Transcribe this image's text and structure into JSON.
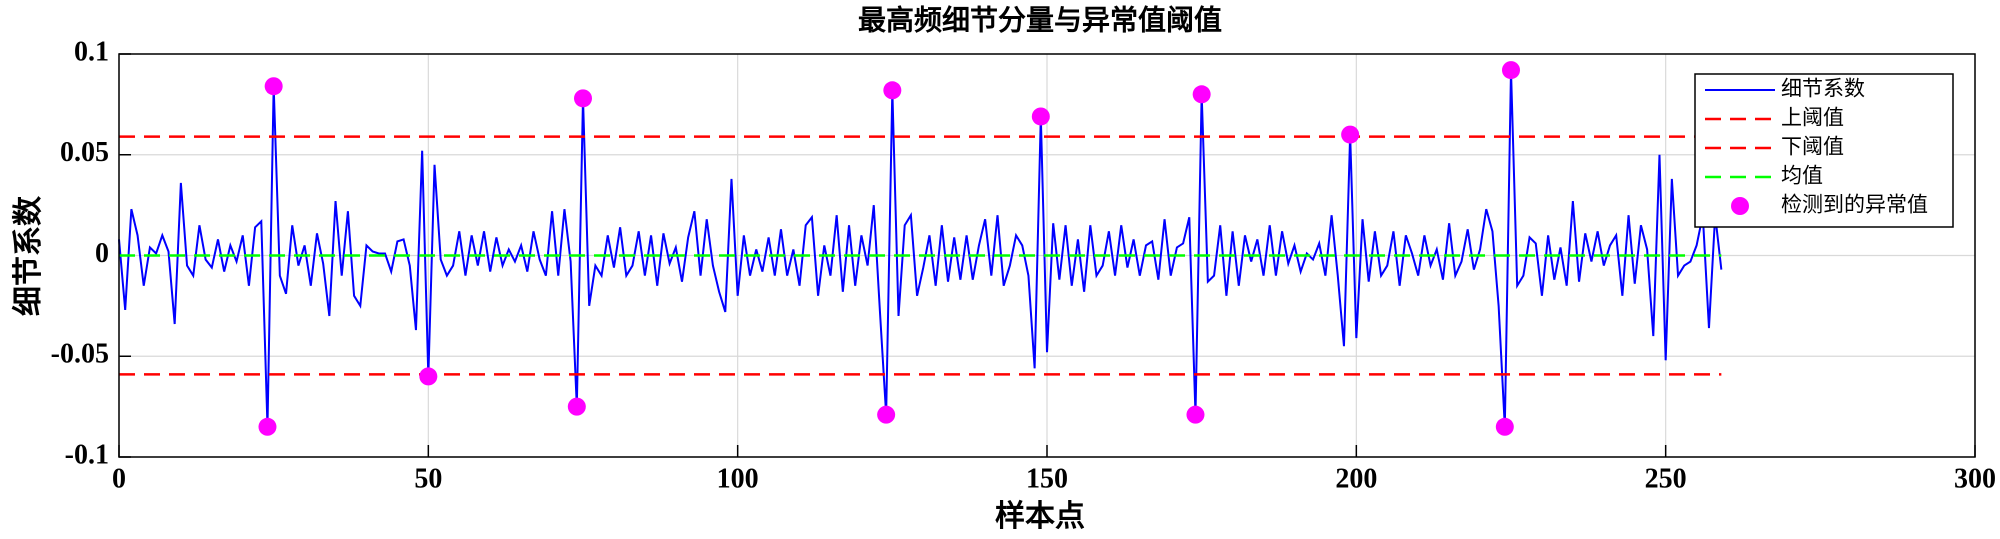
{
  "chart_data": {
    "type": "line",
    "title": "最高频细节分量与异常值阈值",
    "x_label": "样本点",
    "y_label": "细节系数",
    "xlim": [
      0,
      300
    ],
    "xticks": [
      0,
      50,
      100,
      150,
      200,
      250,
      300
    ],
    "ylim": [
      -0.1,
      0.1
    ],
    "yticks": [
      -0.1,
      -0.05,
      0,
      0.05,
      0.1
    ],
    "grid": true,
    "legend": "upper right",
    "series": [
      {
        "name": "细节系数",
        "color": "#0000ff",
        "style": "line",
        "x": [
          0,
          1,
          2,
          3,
          4,
          5,
          6,
          7,
          8,
          9,
          10,
          11,
          12,
          13,
          14,
          15,
          16,
          17,
          18,
          19,
          20,
          21,
          22,
          23,
          24,
          25,
          26,
          27,
          28,
          29,
          30,
          31,
          32,
          33,
          34,
          35,
          36,
          37,
          38,
          39,
          40,
          41,
          42,
          43,
          44,
          45,
          46,
          47,
          48,
          49,
          50,
          51,
          52,
          53,
          54,
          55,
          56,
          57,
          58,
          59,
          60,
          61,
          62,
          63,
          64,
          65,
          66,
          67,
          68,
          69,
          70,
          71,
          72,
          73,
          74,
          75,
          76,
          77,
          78,
          79,
          80,
          81,
          82,
          83,
          84,
          85,
          86,
          87,
          88,
          89,
          90,
          91,
          92,
          93,
          94,
          95,
          96,
          97,
          98,
          99,
          100,
          101,
          102,
          103,
          104,
          105,
          106,
          107,
          108,
          109,
          110,
          111,
          112,
          113,
          114,
          115,
          116,
          117,
          118,
          119,
          120,
          121,
          122,
          123,
          124,
          125,
          126,
          127,
          128,
          129,
          130,
          131,
          132,
          133,
          134,
          135,
          136,
          137,
          138,
          139,
          140,
          141,
          142,
          143,
          144,
          145,
          146,
          147,
          148,
          149,
          150,
          151,
          152,
          153,
          154,
          155,
          156,
          157,
          158,
          159,
          160,
          161,
          162,
          163,
          164,
          165,
          166,
          167,
          168,
          169,
          170,
          171,
          172,
          173,
          174,
          175,
          176,
          177,
          178,
          179,
          180,
          181,
          182,
          183,
          184,
          185,
          186,
          187,
          188,
          189,
          190,
          191,
          192,
          193,
          194,
          195,
          196,
          197,
          198,
          199,
          200,
          201,
          202,
          203,
          204,
          205,
          206,
          207,
          208,
          209,
          210,
          211,
          212,
          213,
          214,
          215,
          216,
          217,
          218,
          219,
          220,
          221,
          222,
          223,
          224,
          225,
          226,
          227,
          228,
          229,
          230,
          231,
          232,
          233,
          234,
          235,
          236,
          237,
          238,
          239,
          240,
          241,
          242,
          243,
          244,
          245,
          246,
          247,
          248,
          249,
          250,
          251,
          252,
          253,
          254,
          255,
          256,
          257,
          258,
          259
        ],
        "values": [
          0.008,
          -0.027,
          0.023,
          0.01,
          -0.015,
          0.004,
          0.001,
          0.01,
          0.002,
          -0.034,
          0.036,
          -0.005,
          -0.01,
          0.015,
          -0.002,
          -0.006,
          0.008,
          -0.008,
          0.005,
          -0.003,
          0.01,
          -0.015,
          0.014,
          0.017,
          -0.085,
          0.084,
          -0.01,
          -0.019,
          0.015,
          -0.005,
          0.005,
          -0.015,
          0.011,
          -0.004,
          -0.03,
          0.027,
          -0.01,
          0.022,
          -0.02,
          -0.025,
          0.005,
          0.002,
          0.001,
          0.001,
          -0.008,
          0.007,
          0.008,
          -0.005,
          -0.037,
          0.052,
          -0.06,
          0.045,
          -0.002,
          -0.01,
          -0.005,
          0.012,
          -0.01,
          0.01,
          -0.005,
          0.012,
          -0.008,
          0.009,
          -0.005,
          0.003,
          -0.003,
          0.005,
          -0.008,
          0.012,
          -0.002,
          -0.01,
          0.022,
          -0.01,
          0.023,
          -0.003,
          -0.075,
          0.078,
          -0.025,
          -0.005,
          -0.01,
          0.01,
          -0.006,
          0.014,
          -0.01,
          -0.005,
          0.012,
          -0.01,
          0.01,
          -0.015,
          0.011,
          -0.004,
          0.004,
          -0.013,
          0.009,
          0.022,
          -0.01,
          0.018,
          -0.005,
          -0.018,
          -0.028,
          0.038,
          -0.02,
          0.01,
          -0.01,
          0.003,
          -0.008,
          0.009,
          -0.01,
          0.013,
          -0.01,
          0.003,
          -0.015,
          0.015,
          0.019,
          -0.02,
          0.005,
          -0.01,
          0.02,
          -0.018,
          0.015,
          -0.015,
          0.01,
          -0.005,
          0.025,
          -0.028,
          -0.079,
          0.082,
          -0.03,
          0.015,
          0.02,
          -0.02,
          -0.006,
          0.01,
          -0.015,
          0.015,
          -0.013,
          0.009,
          -0.012,
          0.01,
          -0.012,
          0.005,
          0.018,
          -0.01,
          0.02,
          -0.015,
          -0.005,
          0.01,
          0.005,
          -0.01,
          -0.056,
          0.069,
          -0.048,
          0.016,
          -0.012,
          0.015,
          -0.015,
          0.008,
          -0.018,
          0.015,
          -0.01,
          -0.005,
          0.012,
          -0.01,
          0.015,
          -0.006,
          0.008,
          -0.01,
          0.005,
          0.007,
          -0.012,
          0.018,
          -0.01,
          0.004,
          0.006,
          0.019,
          -0.079,
          0.08,
          -0.013,
          -0.01,
          0.015,
          -0.02,
          0.012,
          -0.015,
          0.01,
          -0.003,
          0.008,
          -0.01,
          0.015,
          -0.01,
          0.012,
          -0.004,
          0.005,
          -0.008,
          0.001,
          -0.002,
          0.006,
          -0.01,
          0.02,
          -0.01,
          -0.045,
          0.06,
          -0.041,
          0.018,
          -0.013,
          0.012,
          -0.01,
          -0.005,
          0.012,
          -0.015,
          0.01,
          0.001,
          -0.01,
          0.01,
          -0.005,
          0.003,
          -0.012,
          0.016,
          -0.01,
          -0.003,
          0.013,
          -0.007,
          0.003,
          0.023,
          0.012,
          -0.025,
          -0.085,
          0.092,
          -0.015,
          -0.01,
          0.009,
          0.006,
          -0.02,
          0.01,
          -0.012,
          0.004,
          -0.015,
          0.027,
          -0.013,
          0.011,
          -0.003,
          0.012,
          -0.005,
          0.005,
          0.01,
          -0.02,
          0.02,
          -0.014,
          0.015,
          0.003,
          -0.04,
          0.05,
          -0.052,
          0.038,
          -0.01,
          -0.005,
          -0.003,
          0.005,
          0.02,
          -0.036,
          0.02,
          -0.007
        ]
      },
      {
        "name": "上阈值",
        "color": "#ff0000",
        "style": "dashed",
        "x": [
          0,
          259
        ],
        "values": [
          0.059,
          0.059
        ]
      },
      {
        "name": "下阈值",
        "color": "#ff0000",
        "style": "dashed",
        "x": [
          0,
          259
        ],
        "values": [
          -0.059,
          -0.059
        ]
      },
      {
        "name": "均值",
        "color": "#00ff00",
        "style": "dashed",
        "x": [
          0,
          259
        ],
        "values": [
          0,
          0
        ]
      },
      {
        "name": "检测到的异常值",
        "color": "#ff00ff",
        "style": "marker",
        "x": [
          24,
          25,
          50,
          74,
          75,
          124,
          125,
          149,
          174,
          175,
          199,
          224,
          225
        ],
        "values": [
          -0.085,
          0.084,
          -0.06,
          -0.075,
          0.078,
          -0.079,
          0.082,
          0.069,
          -0.079,
          0.08,
          0.06,
          -0.085,
          0.092
        ]
      }
    ]
  }
}
